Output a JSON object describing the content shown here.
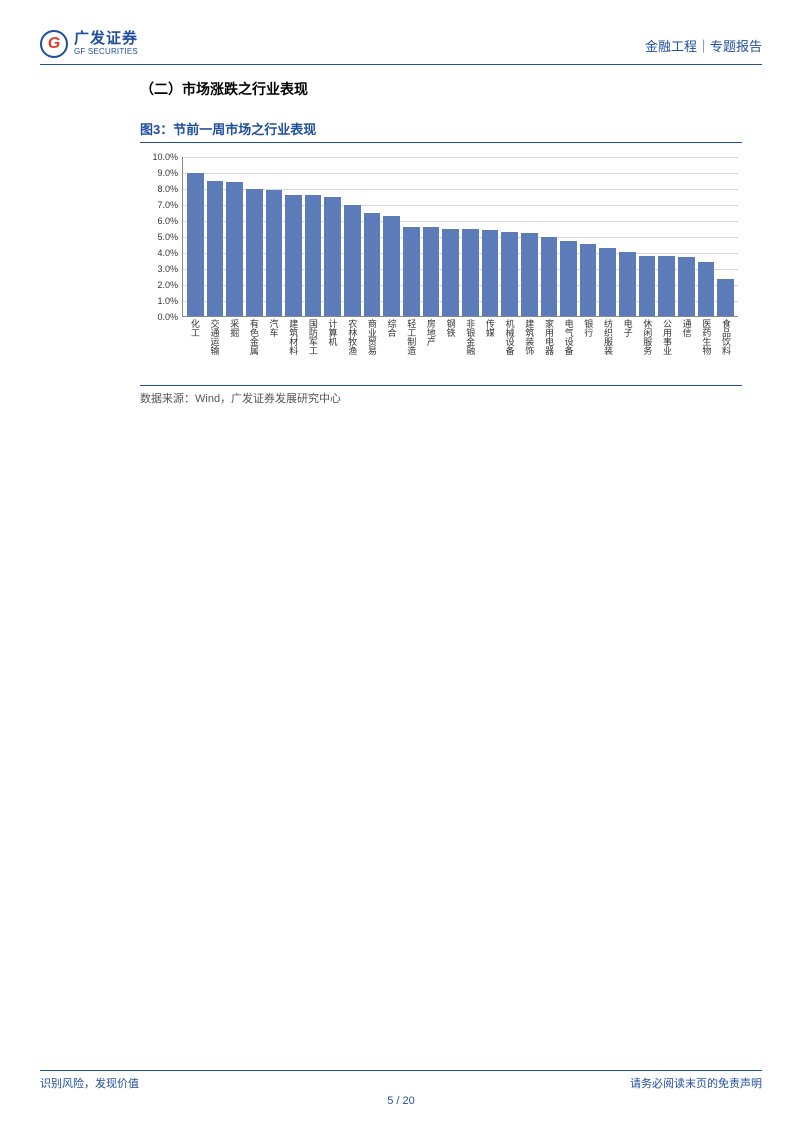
{
  "header": {
    "logo_cn": "广发证券",
    "logo_en": "GF SECURITIES",
    "logo_letter": "G",
    "right_text": "金融工程｜专题报告"
  },
  "section_title": "（二）市场涨跌之行业表现",
  "figure": {
    "title": "图3：节前一周市场之行业表现",
    "source": "数据来源：Wind，广发证券发展研究中心",
    "chart": {
      "type": "bar",
      "ylim": [
        0,
        10
      ],
      "ytick_step": 1,
      "ytick_suffix": "%",
      "bar_color": "#5b7cb8",
      "grid_color": "#d9d9d9",
      "axis_color": "#888888",
      "background_color": "#ffffff",
      "categories": [
        "化工",
        "交通运输",
        "采掘",
        "有色金属",
        "汽车",
        "建筑材料",
        "国防军工",
        "计算机",
        "农林牧渔",
        "商业贸易",
        "综合",
        "轻工制造",
        "房地产",
        "钢铁",
        "非银金融",
        "传媒",
        "机械设备",
        "建筑装饰",
        "家用电器",
        "电气设备",
        "银行",
        "纺织服装",
        "电子",
        "休闲服务",
        "公用事业",
        "通信",
        "医药生物",
        "食品饮料"
      ],
      "values": [
        9.0,
        8.5,
        8.4,
        8.0,
        7.9,
        7.6,
        7.6,
        7.5,
        7.0,
        6.5,
        6.3,
        5.6,
        5.6,
        5.5,
        5.5,
        5.4,
        5.3,
        5.2,
        5.0,
        4.7,
        4.5,
        4.3,
        4.0,
        3.8,
        3.8,
        3.7,
        3.4,
        2.3
      ]
    }
  },
  "footer": {
    "left": "识别风险，发现价值",
    "right": "请务必阅读末页的免责声明",
    "page_current": "5",
    "page_sep": " / ",
    "page_total": "20"
  }
}
